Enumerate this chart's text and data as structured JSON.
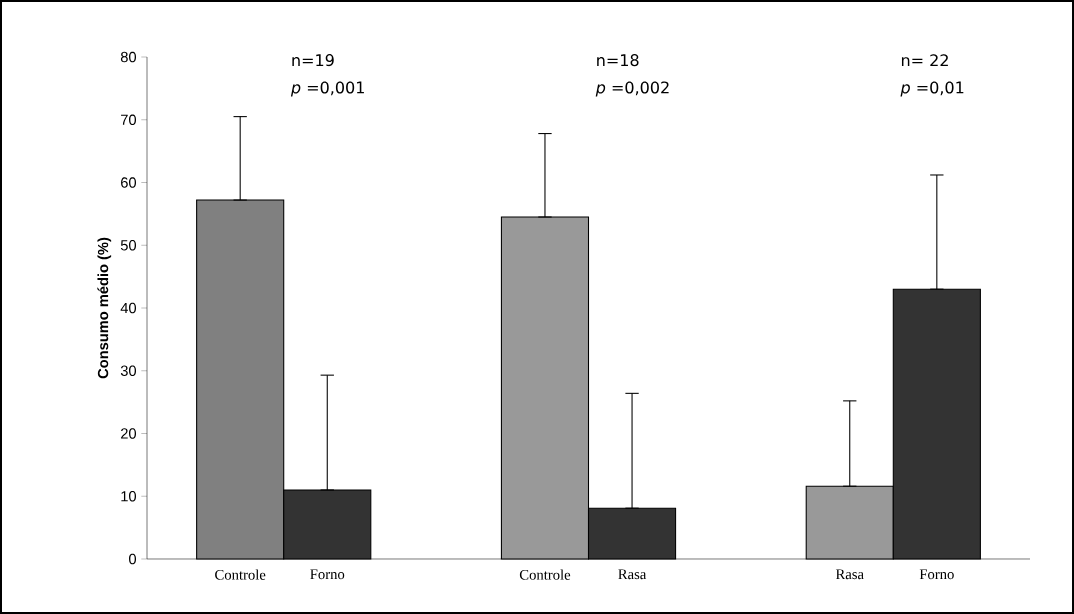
{
  "chart_data": {
    "type": "bar",
    "ylabel": "Consumo médio (%)",
    "categories": [
      "Controle",
      "Forno",
      "Controle",
      "Rasa",
      "Rasa",
      "Forno"
    ],
    "values": [
      57.2,
      11,
      54.5,
      8.1,
      11.6,
      43
    ],
    "colors": [
      "#808080",
      "#333333",
      "#999999",
      "#333333",
      "#999999",
      "#333333"
    ],
    "errors": [
      [
        57.2,
        70.5
      ],
      [
        11,
        29.3
      ],
      [
        54.5,
        67.8
      ],
      [
        8.1,
        26.4
      ],
      [
        11.6,
        25.2
      ],
      [
        43,
        61.2
      ]
    ],
    "ylim": [
      0,
      80
    ],
    "yticks": [
      0,
      10,
      20,
      30,
      40,
      50,
      60,
      70,
      80
    ],
    "annotations": [
      "n=19",
      "*p* =0,001",
      "n=18",
      "*p* =0,002",
      "n= 22",
      "*p* =0,01"
    ]
  }
}
